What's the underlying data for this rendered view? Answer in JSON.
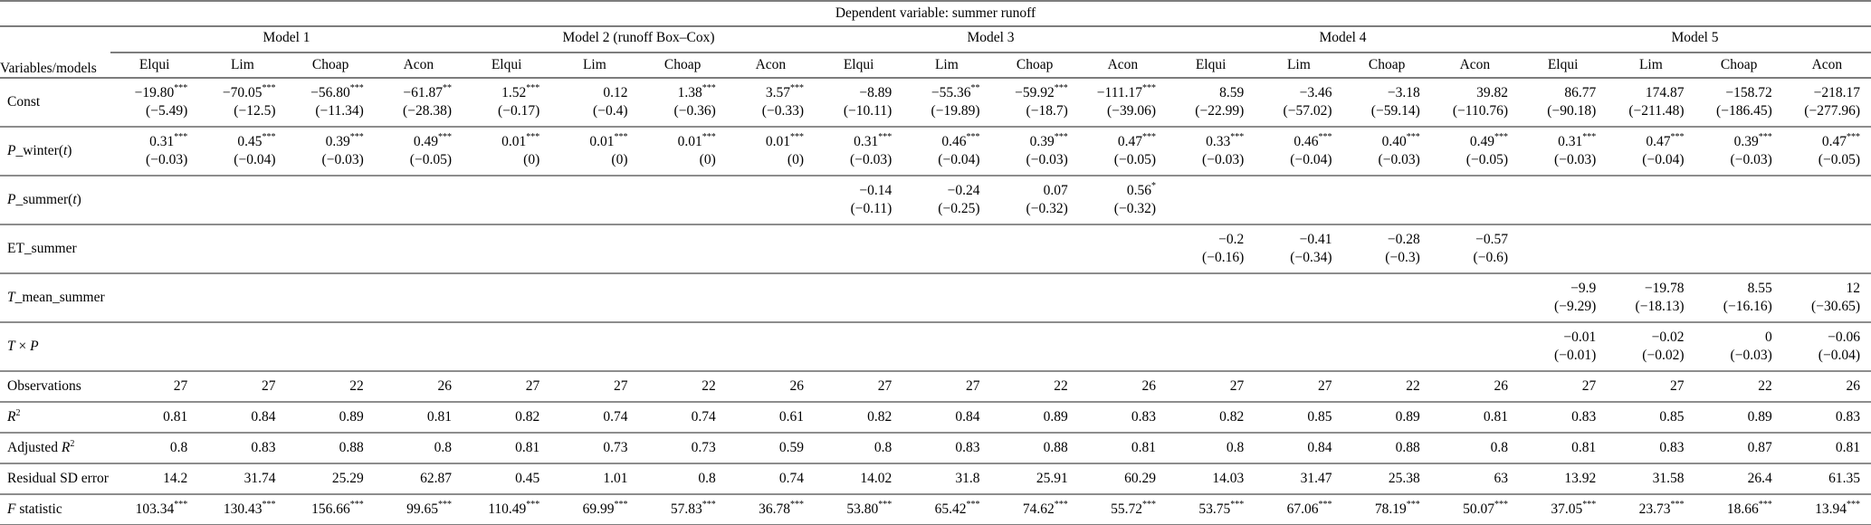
{
  "title": "Dependent variable: summer runoff",
  "header": {
    "corner_label": "Variables/models",
    "models": [
      {
        "name": "Model 1",
        "columns": [
          "Elqui",
          "Lim",
          "Choap",
          "Acon"
        ]
      },
      {
        "name": "Model 2 (runoff Box–Cox)",
        "columns": [
          "Elqui",
          "Lim",
          "Choap",
          "Acon"
        ]
      },
      {
        "name": "Model 3",
        "columns": [
          "Elqui",
          "Lim",
          "Choap",
          "Acon"
        ]
      },
      {
        "name": "Model 4",
        "columns": [
          "Elqui",
          "Lim",
          "Choap",
          "Acon"
        ]
      },
      {
        "name": "Model 5",
        "columns": [
          "Elqui",
          "Lim",
          "Choap",
          "Acon"
        ]
      }
    ]
  },
  "coefficient_rows": [
    {
      "id": "const",
      "label": [
        {
          "t": "Const"
        }
      ],
      "cells": [
        {
          "v": "−19.80***",
          "se": "(−5.49)"
        },
        {
          "v": "−70.05***",
          "se": "(−12.5)"
        },
        {
          "v": "−56.80***",
          "se": "(−11.34)"
        },
        {
          "v": "−61.87**",
          "se": "(−28.38)"
        },
        {
          "v": "1.52***",
          "se": "(−0.17)"
        },
        {
          "v": "0.12",
          "se": "(−0.4)"
        },
        {
          "v": "1.38***",
          "se": "(−0.36)"
        },
        {
          "v": "3.57***",
          "se": "(−0.33)"
        },
        {
          "v": "−8.89",
          "se": "(−10.11)"
        },
        {
          "v": "−55.36**",
          "se": "(−19.89)"
        },
        {
          "v": "−59.92***",
          "se": "(−18.7)"
        },
        {
          "v": "−111.17***",
          "se": "(−39.06)"
        },
        {
          "v": "8.59",
          "se": "(−22.99)"
        },
        {
          "v": "−3.46",
          "se": "(−57.02)"
        },
        {
          "v": "−3.18",
          "se": "(−59.14)"
        },
        {
          "v": "39.82",
          "se": "(−110.76)"
        },
        {
          "v": "86.77",
          "se": "(−90.18)"
        },
        {
          "v": "174.87",
          "se": "(−211.48)"
        },
        {
          "v": "−158.72",
          "se": "(−186.45)"
        },
        {
          "v": "−218.17",
          "se": "(−277.96)"
        }
      ]
    },
    {
      "id": "p-winter",
      "label": [
        {
          "t": "P",
          "i": true
        },
        {
          "t": "_winter("
        },
        {
          "t": "t",
          "i": true
        },
        {
          "t": ")"
        }
      ],
      "cells": [
        {
          "v": "0.31***",
          "se": "(−0.03)"
        },
        {
          "v": "0.45***",
          "se": "(−0.04)"
        },
        {
          "v": "0.39***",
          "se": "(−0.03)"
        },
        {
          "v": "0.49***",
          "se": "(−0.05)"
        },
        {
          "v": "0.01***",
          "se": "(0)"
        },
        {
          "v": "0.01***",
          "se": "(0)"
        },
        {
          "v": "0.01***",
          "se": "(0)"
        },
        {
          "v": "0.01***",
          "se": "(0)"
        },
        {
          "v": "0.31***",
          "se": "(−0.03)"
        },
        {
          "v": "0.46***",
          "se": "(−0.04)"
        },
        {
          "v": "0.39***",
          "se": "(−0.03)"
        },
        {
          "v": "0.47***",
          "se": "(−0.05)"
        },
        {
          "v": "0.33***",
          "se": "(−0.03)"
        },
        {
          "v": "0.46***",
          "se": "(−0.04)"
        },
        {
          "v": "0.40***",
          "se": "(−0.03)"
        },
        {
          "v": "0.49***",
          "se": "(−0.05)"
        },
        {
          "v": "0.31***",
          "se": "(−0.03)"
        },
        {
          "v": "0.47***",
          "se": "(−0.04)"
        },
        {
          "v": "0.39***",
          "se": "(−0.03)"
        },
        {
          "v": "0.47***",
          "se": "(−0.05)"
        }
      ]
    },
    {
      "id": "p-summer",
      "label": [
        {
          "t": "P",
          "i": true
        },
        {
          "t": "_summer("
        },
        {
          "t": "t",
          "i": true
        },
        {
          "t": ")"
        }
      ],
      "cells": [
        null,
        null,
        null,
        null,
        null,
        null,
        null,
        null,
        {
          "v": "−0.14",
          "se": "(−0.11)"
        },
        {
          "v": "−0.24",
          "se": "(−0.25)"
        },
        {
          "v": "0.07",
          "se": "(−0.32)"
        },
        {
          "v": "0.56*",
          "se": "(−0.32)"
        },
        null,
        null,
        null,
        null,
        null,
        null,
        null,
        null
      ]
    },
    {
      "id": "et-summer",
      "label": [
        {
          "t": "ET_summer"
        }
      ],
      "cells": [
        null,
        null,
        null,
        null,
        null,
        null,
        null,
        null,
        null,
        null,
        null,
        null,
        {
          "v": "−0.2",
          "se": "(−0.16)"
        },
        {
          "v": "−0.41",
          "se": "(−0.34)"
        },
        {
          "v": "−0.28",
          "se": "(−0.3)"
        },
        {
          "v": "−0.57",
          "se": "(−0.6)"
        },
        null,
        null,
        null,
        null
      ]
    },
    {
      "id": "t-mean-summer",
      "label": [
        {
          "t": "T",
          "i": true
        },
        {
          "t": "_mean_summer"
        }
      ],
      "cells": [
        null,
        null,
        null,
        null,
        null,
        null,
        null,
        null,
        null,
        null,
        null,
        null,
        null,
        null,
        null,
        null,
        {
          "v": "−9.9",
          "se": "(−9.29)"
        },
        {
          "v": "−19.78",
          "se": "(−18.13)"
        },
        {
          "v": "8.55",
          "se": "(−16.16)"
        },
        {
          "v": "12",
          "se": "(−30.65)"
        }
      ]
    },
    {
      "id": "t-x-p",
      "label": [
        {
          "t": "T",
          "i": true
        },
        {
          "t": " × "
        },
        {
          "t": "P",
          "i": true
        }
      ],
      "cells": [
        null,
        null,
        null,
        null,
        null,
        null,
        null,
        null,
        null,
        null,
        null,
        null,
        null,
        null,
        null,
        null,
        {
          "v": "−0.01",
          "se": "(−0.01)"
        },
        {
          "v": "−0.02",
          "se": "(−0.02)"
        },
        {
          "v": "0",
          "se": "(−0.03)"
        },
        {
          "v": "−0.06",
          "se": "(−0.04)"
        }
      ]
    }
  ],
  "stat_rows": [
    {
      "id": "observations",
      "label": [
        {
          "t": "Observations"
        }
      ],
      "values": [
        "27",
        "27",
        "22",
        "26",
        "27",
        "27",
        "22",
        "26",
        "27",
        "27",
        "22",
        "26",
        "27",
        "27",
        "22",
        "26",
        "27",
        "27",
        "22",
        "26"
      ]
    },
    {
      "id": "r2",
      "label": [
        {
          "t": "R",
          "i": true
        },
        {
          "t": "2",
          "sup": true
        }
      ],
      "values": [
        "0.81",
        "0.84",
        "0.89",
        "0.81",
        "0.82",
        "0.74",
        "0.74",
        "0.61",
        "0.82",
        "0.84",
        "0.89",
        "0.83",
        "0.82",
        "0.85",
        "0.89",
        "0.81",
        "0.83",
        "0.85",
        "0.89",
        "0.83"
      ]
    },
    {
      "id": "adj-r2",
      "label": [
        {
          "t": "Adjusted "
        },
        {
          "t": "R",
          "i": true
        },
        {
          "t": "2",
          "sup": true
        }
      ],
      "values": [
        "0.8",
        "0.83",
        "0.88",
        "0.8",
        "0.81",
        "0.73",
        "0.73",
        "0.59",
        "0.8",
        "0.83",
        "0.88",
        "0.81",
        "0.8",
        "0.84",
        "0.88",
        "0.8",
        "0.81",
        "0.83",
        "0.87",
        "0.81"
      ]
    },
    {
      "id": "residual-sd",
      "label": [
        {
          "t": "Residual SD error"
        }
      ],
      "values": [
        "14.2",
        "31.74",
        "25.29",
        "62.87",
        "0.45",
        "1.01",
        "0.8",
        "0.74",
        "14.02",
        "31.8",
        "25.91",
        "60.29",
        "14.03",
        "31.47",
        "25.38",
        "63",
        "13.92",
        "31.58",
        "26.4",
        "61.35"
      ]
    },
    {
      "id": "f-statistic",
      "label": [
        {
          "t": "F",
          "i": true
        },
        {
          "t": " statistic"
        }
      ],
      "values": [
        "103.34***",
        "130.43***",
        "156.66***",
        "99.65***",
        "110.49***",
        "69.99***",
        "57.83***",
        "36.78***",
        "53.80***",
        "65.42***",
        "74.62***",
        "55.72***",
        "53.75***",
        "67.06***",
        "78.19***",
        "50.07***",
        "37.05***",
        "23.73***",
        "18.66***",
        "13.94***"
      ]
    }
  ]
}
